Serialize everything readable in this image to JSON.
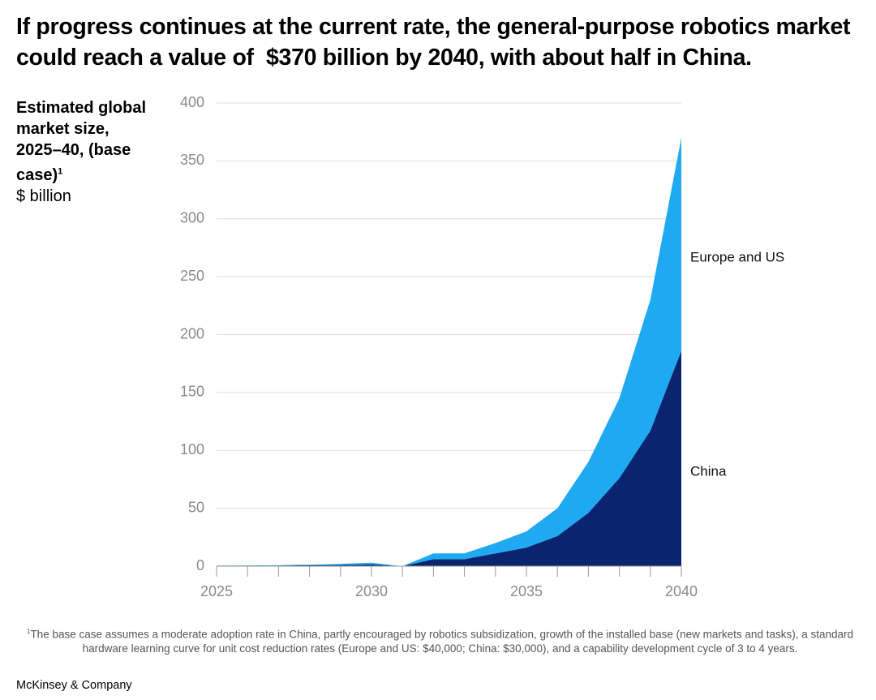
{
  "chart_data": {
    "type": "stacked_area",
    "title": "If progress continues at the current rate, the general-purpose robotics market could reach a value of  $370 billion by 2040, with about half in China.",
    "y_label": "Estimated global market size, 2025–40, (base case)",
    "y_label_note": "1",
    "y_unit": "$ billion",
    "x": [
      2025,
      2026,
      2027,
      2028,
      2029,
      2030,
      2031,
      2032,
      2033,
      2034,
      2035,
      2036,
      2037,
      2038,
      2039,
      2040
    ],
    "series": [
      {
        "name": "China",
        "color": "#0b2470",
        "values": [
          0.3,
          0.3,
          0.5,
          0.8,
          1,
          1.5,
          0,
          6,
          6,
          11,
          16,
          26,
          46,
          76,
          117,
          186
        ]
      },
      {
        "name": "Europe and US",
        "color": "#1fa9f0",
        "values": [
          0.2,
          0.3,
          0.4,
          0.5,
          1,
          1.5,
          0,
          5,
          5,
          9,
          14,
          24,
          44,
          69,
          113,
          184
        ]
      }
    ],
    "xlim": [
      2025,
      2040
    ],
    "xticks": [
      2025,
      2030,
      2035,
      2040
    ],
    "ylim": [
      0,
      400
    ],
    "yticks": [
      0,
      50,
      100,
      150,
      200,
      250,
      300,
      350,
      400
    ],
    "grid": true,
    "footnote_marker": "1",
    "footnote": "The base case assumes a moderate adoption rate in China, partly encouraged by robotics subsidization, growth of the installed base (new markets and tasks), a standard hardware learning curve for unit cost reduction rates (Europe and US: $40,000; China: $30,000), and a capability development cycle of 3 to 4 years.",
    "source": "McKinsey & Company"
  }
}
